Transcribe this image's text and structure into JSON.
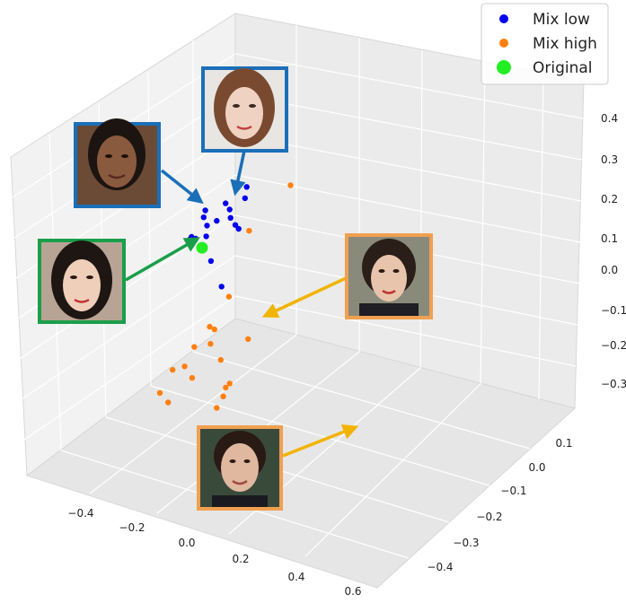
{
  "chart_data": {
    "type": "scatter",
    "projection": "3d",
    "title": "",
    "xlabel": "",
    "ylabel": "",
    "zlabel": "",
    "x_ticks": [
      "−0.4",
      "−0.2",
      "0.0",
      "0.2",
      "0.4",
      "0.6"
    ],
    "y_ticks": [
      "0.1",
      "0.0",
      "−0.1",
      "−0.2",
      "−0.3",
      "−0.4"
    ],
    "z_ticks": [
      "0.4",
      "0.3",
      "0.2",
      "0.1",
      "0.0",
      "−0.1",
      "−0.2",
      "−0.3"
    ],
    "xlim": [
      -0.5,
      0.7
    ],
    "ylim": [
      -0.45,
      0.15
    ],
    "zlim": [
      -0.35,
      0.45
    ],
    "grid": true,
    "legend_position": "top-right",
    "series": [
      {
        "name": "Mix low",
        "color": "#0000ee",
        "points": [
          {
            "x": -0.05,
            "y": 0.02,
            "z": 0.17
          },
          {
            "x": -0.07,
            "y": 0.03,
            "z": 0.15
          },
          {
            "x": -0.03,
            "y": 0.01,
            "z": 0.14
          },
          {
            "x": -0.08,
            "y": 0.0,
            "z": 0.12
          },
          {
            "x": -0.05,
            "y": -0.01,
            "z": 0.12
          },
          {
            "x": -0.02,
            "y": 0.0,
            "z": 0.12
          },
          {
            "x": -0.1,
            "y": 0.01,
            "z": 0.11
          },
          {
            "x": -0.06,
            "y": 0.02,
            "z": 0.08
          },
          {
            "x": -0.04,
            "y": 0.03,
            "z": 0.05
          },
          {
            "x": 0.02,
            "y": 0.03,
            "z": 0.18
          },
          {
            "x": 0.05,
            "y": 0.02,
            "z": 0.17
          },
          {
            "x": 0.01,
            "y": 0.01,
            "z": 0.15
          },
          {
            "x": 0.06,
            "y": 0.03,
            "z": 0.13
          },
          {
            "x": 0.1,
            "y": 0.03,
            "z": 0.19
          },
          {
            "x": 0.12,
            "y": 0.02,
            "z": 0.22
          },
          {
            "x": 0.08,
            "y": 0.0,
            "z": 0.16
          },
          {
            "x": 0.1,
            "y": 0.01,
            "z": 0.13
          },
          {
            "x": 0.03,
            "y": 0.01,
            "z": 0.0
          }
        ]
      },
      {
        "name": "Mix high",
        "color": "#ff7f0e",
        "points": [
          {
            "x": 0.3,
            "y": 0.02,
            "z": 0.22
          },
          {
            "x": 0.13,
            "y": 0.02,
            "z": 0.12
          },
          {
            "x": 0.1,
            "y": -0.02,
            "z": -0.01
          },
          {
            "x": 0.08,
            "y": -0.05,
            "z": -0.07
          },
          {
            "x": 0.1,
            "y": -0.08,
            "z": -0.05
          },
          {
            "x": 0.05,
            "y": -0.09,
            "z": -0.09
          },
          {
            "x": 0.13,
            "y": -0.1,
            "z": -0.08
          },
          {
            "x": 0.05,
            "y": -0.12,
            "z": -0.12
          },
          {
            "x": 0.08,
            "y": -0.18,
            "z": -0.1
          },
          {
            "x": 0.16,
            "y": -0.18,
            "z": -0.12
          },
          {
            "x": 0.35,
            "y": -0.15,
            "z": -0.05
          },
          {
            "x": 0.12,
            "y": -0.25,
            "z": -0.12
          },
          {
            "x": 0.37,
            "y": -0.25,
            "z": -0.05
          },
          {
            "x": 0.42,
            "y": -0.26,
            "z": -0.1
          },
          {
            "x": 0.42,
            "y": -0.28,
            "z": -0.12
          },
          {
            "x": 0.43,
            "y": -0.28,
            "z": -0.1
          },
          {
            "x": 0.38,
            "y": -0.27,
            "z": -0.15
          },
          {
            "x": 0.22,
            "y": -0.3,
            "z": -0.12
          }
        ]
      },
      {
        "name": "Original",
        "color": "#22ee22",
        "points": [
          {
            "x": -0.05,
            "y": 0.01,
            "z": 0.09
          }
        ]
      }
    ]
  },
  "insets": [
    {
      "name": "face-inset-low-1",
      "border": "#1a6fb8"
    },
    {
      "name": "face-inset-low-2",
      "border": "#1a6fb8"
    },
    {
      "name": "face-inset-original",
      "border": "#1a9e4a"
    },
    {
      "name": "face-inset-high-1",
      "border": "#f0a050"
    },
    {
      "name": "face-inset-high-2",
      "border": "#f0a050"
    }
  ]
}
